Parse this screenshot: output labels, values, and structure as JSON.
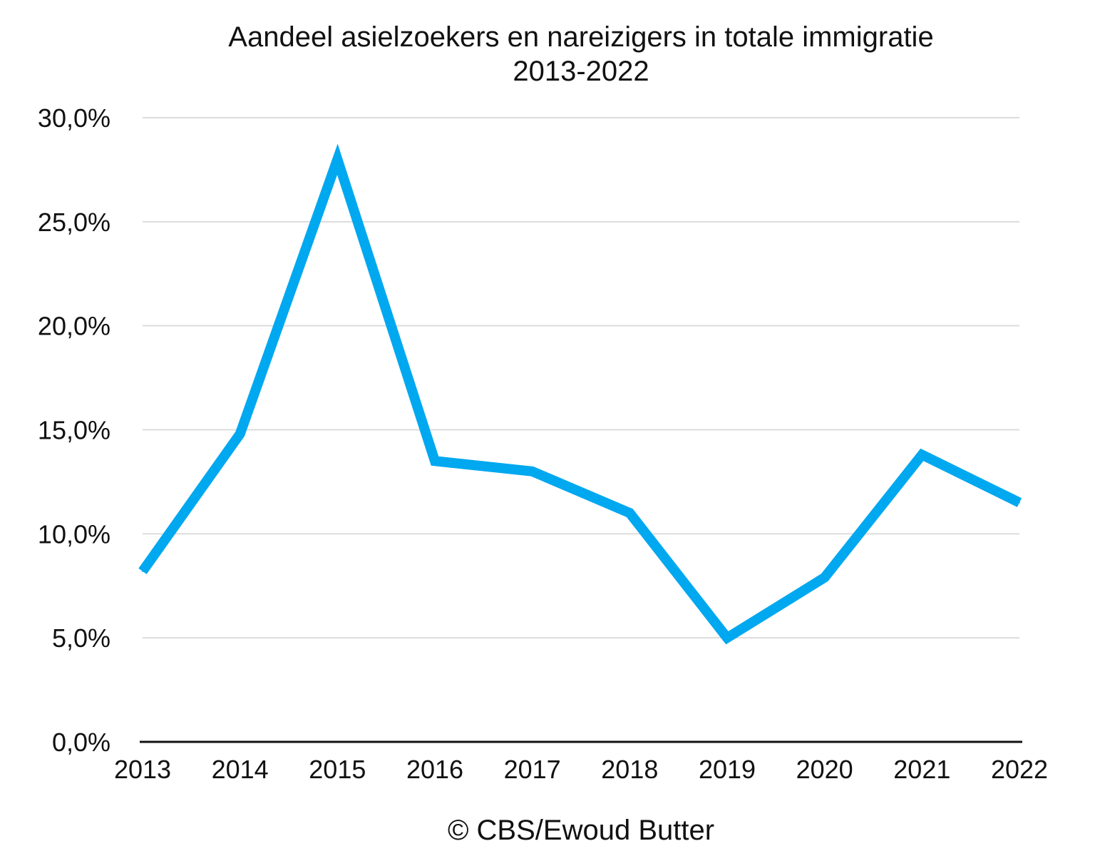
{
  "chart_data": {
    "type": "line",
    "title": "Aandeel asielzoekers en nareizigers in totale immigratie",
    "subtitle": "2013-2022",
    "xlabel": "",
    "ylabel": "",
    "categories": [
      "2013",
      "2014",
      "2015",
      "2016",
      "2017",
      "2018",
      "2019",
      "2020",
      "2021",
      "2022"
    ],
    "y_ticks": [
      "0,0%",
      "5,0%",
      "10,0%",
      "15,0%",
      "20,0%",
      "25,0%",
      "30,0%"
    ],
    "y_tick_values": [
      0,
      5,
      10,
      15,
      20,
      25,
      30
    ],
    "ylim": [
      0,
      30
    ],
    "grid": true,
    "legend": "none",
    "series": [
      {
        "values": [
          8.2,
          14.8,
          28.0,
          13.5,
          13.0,
          11.0,
          5.0,
          7.9,
          13.8,
          11.5
        ],
        "color": "#00a8f0"
      }
    ],
    "colors": {
      "line": "#00a8f0",
      "grid": "#dcdcdc",
      "axis": "#111111"
    }
  },
  "footer": {
    "copyright": "© CBS/Ewoud Butter"
  }
}
